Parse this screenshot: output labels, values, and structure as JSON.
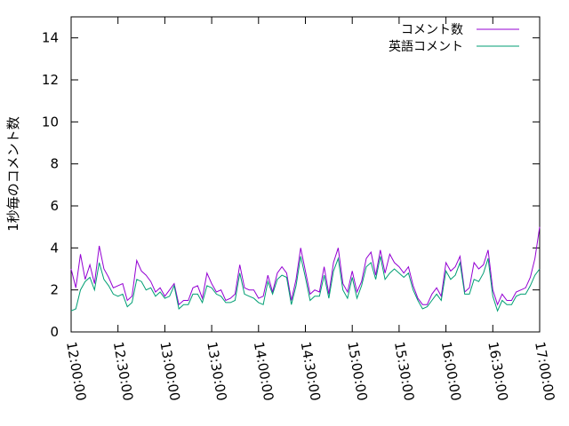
{
  "chart_data": {
    "type": "line",
    "title": "",
    "xlabel": "",
    "ylabel": "1秒毎のコメント数",
    "ylim": [
      0,
      15
    ],
    "yticks": [
      0,
      2,
      4,
      6,
      8,
      10,
      12,
      14
    ],
    "xlim": [
      "12:00:00",
      "17:00:00"
    ],
    "xticks": [
      "12:00:00",
      "12:30:00",
      "13:00:00",
      "13:30:00",
      "14:00:00",
      "14:30:00",
      "15:00:00",
      "15:30:00",
      "16:00:00",
      "16:30:00",
      "17:00:00"
    ],
    "grid": false,
    "legend_position": "top-right",
    "x": [
      "12:00:00",
      "12:03:00",
      "12:06:00",
      "12:09:00",
      "12:12:00",
      "12:15:00",
      "12:18:00",
      "12:21:00",
      "12:24:00",
      "12:27:00",
      "12:30:00",
      "12:33:00",
      "12:36:00",
      "12:39:00",
      "12:42:00",
      "12:45:00",
      "12:48:00",
      "12:51:00",
      "12:54:00",
      "12:57:00",
      "13:00:00",
      "13:03:00",
      "13:06:00",
      "13:09:00",
      "13:12:00",
      "13:15:00",
      "13:18:00",
      "13:21:00",
      "13:24:00",
      "13:27:00",
      "13:30:00",
      "13:33:00",
      "13:36:00",
      "13:39:00",
      "13:42:00",
      "13:45:00",
      "13:48:00",
      "13:51:00",
      "13:54:00",
      "13:57:00",
      "14:00:00",
      "14:03:00",
      "14:06:00",
      "14:09:00",
      "14:12:00",
      "14:15:00",
      "14:18:00",
      "14:21:00",
      "14:24:00",
      "14:27:00",
      "14:30:00",
      "14:33:00",
      "14:36:00",
      "14:39:00",
      "14:42:00",
      "14:45:00",
      "14:48:00",
      "14:51:00",
      "14:54:00",
      "14:57:00",
      "15:00:00",
      "15:03:00",
      "15:06:00",
      "15:09:00",
      "15:12:00",
      "15:15:00",
      "15:18:00",
      "15:21:00",
      "15:24:00",
      "15:27:00",
      "15:30:00",
      "15:33:00",
      "15:36:00",
      "15:39:00",
      "15:42:00",
      "15:45:00",
      "15:48:00",
      "15:51:00",
      "15:54:00",
      "15:57:00",
      "16:00:00",
      "16:03:00",
      "16:06:00",
      "16:09:00",
      "16:12:00",
      "16:15:00",
      "16:18:00",
      "16:21:00",
      "16:24:00",
      "16:27:00",
      "16:30:00",
      "16:33:00",
      "16:36:00",
      "16:39:00",
      "16:42:00",
      "16:45:00",
      "16:48:00",
      "16:51:00",
      "16:54:00",
      "16:57:00",
      "17:00:00"
    ],
    "series": [
      {
        "name": "コメント数",
        "color": "#9400d3",
        "values": [
          3.0,
          2.1,
          3.7,
          2.5,
          3.2,
          2.3,
          4.1,
          3.0,
          2.6,
          2.1,
          2.2,
          2.3,
          1.5,
          1.7,
          3.4,
          2.9,
          2.7,
          2.4,
          1.9,
          2.1,
          1.7,
          2.0,
          2.3,
          1.3,
          1.5,
          1.5,
          2.1,
          2.2,
          1.6,
          2.8,
          2.3,
          1.9,
          2.0,
          1.5,
          1.6,
          1.8,
          3.2,
          2.1,
          2.0,
          2.0,
          1.6,
          1.7,
          2.7,
          1.9,
          2.8,
          3.1,
          2.8,
          1.5,
          2.5,
          4.0,
          2.9,
          1.8,
          2.0,
          1.9,
          3.1,
          1.8,
          3.3,
          4.0,
          2.3,
          1.9,
          2.9,
          1.9,
          2.4,
          3.5,
          3.8,
          2.7,
          3.9,
          2.8,
          3.7,
          3.3,
          3.1,
          2.8,
          3.1,
          2.2,
          1.6,
          1.3,
          1.3,
          1.8,
          2.1,
          1.7,
          3.3,
          2.9,
          3.1,
          3.6,
          1.9,
          2.1,
          3.3,
          3.0,
          3.2,
          3.9,
          2.0,
          1.3,
          1.8,
          1.5,
          1.5,
          1.9,
          2.0,
          2.1,
          2.6,
          3.5,
          5.0
        ]
      },
      {
        "name": "英語コメント",
        "color": "#009e73",
        "values": [
          1.0,
          1.1,
          2.0,
          2.4,
          2.6,
          2.0,
          3.3,
          2.5,
          2.2,
          1.8,
          1.7,
          1.8,
          1.2,
          1.4,
          2.5,
          2.4,
          2.0,
          2.1,
          1.7,
          1.9,
          1.6,
          1.7,
          2.2,
          1.1,
          1.3,
          1.3,
          1.8,
          1.8,
          1.4,
          2.2,
          2.1,
          1.8,
          1.7,
          1.4,
          1.4,
          1.5,
          2.8,
          1.8,
          1.7,
          1.6,
          1.4,
          1.3,
          2.4,
          1.8,
          2.5,
          2.7,
          2.6,
          1.3,
          2.2,
          3.6,
          2.6,
          1.5,
          1.7,
          1.7,
          2.7,
          1.6,
          2.9,
          3.5,
          2.0,
          1.6,
          2.6,
          1.6,
          2.2,
          3.1,
          3.3,
          2.5,
          3.6,
          2.5,
          2.8,
          3.0,
          2.8,
          2.6,
          2.8,
          2.0,
          1.5,
          1.1,
          1.2,
          1.5,
          1.8,
          1.5,
          2.9,
          2.5,
          2.7,
          3.3,
          1.8,
          1.8,
          2.5,
          2.4,
          2.8,
          3.5,
          1.7,
          1.0,
          1.5,
          1.3,
          1.3,
          1.7,
          1.8,
          1.8,
          2.2,
          2.7,
          3.0
        ]
      }
    ]
  }
}
